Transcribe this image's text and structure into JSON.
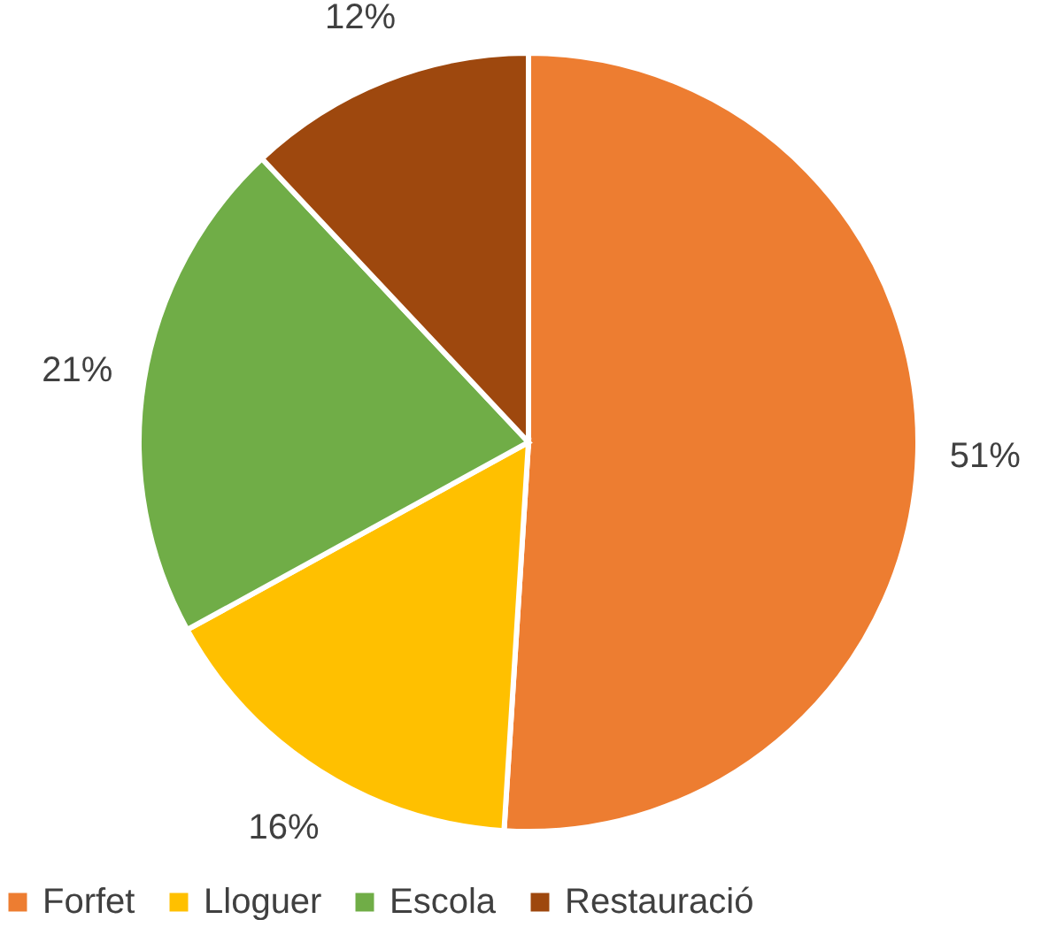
{
  "chart_data": {
    "type": "pie",
    "categories": [
      "Forfet",
      "Lloguer",
      "Escola",
      "Restauració"
    ],
    "values": [
      51,
      16,
      21,
      12
    ],
    "colors": [
      "#ed7d31",
      "#ffc000",
      "#70ad47",
      "#9e480e"
    ],
    "value_labels": [
      "51%",
      "16%",
      "21%",
      "12%"
    ],
    "legend": "bottom"
  }
}
